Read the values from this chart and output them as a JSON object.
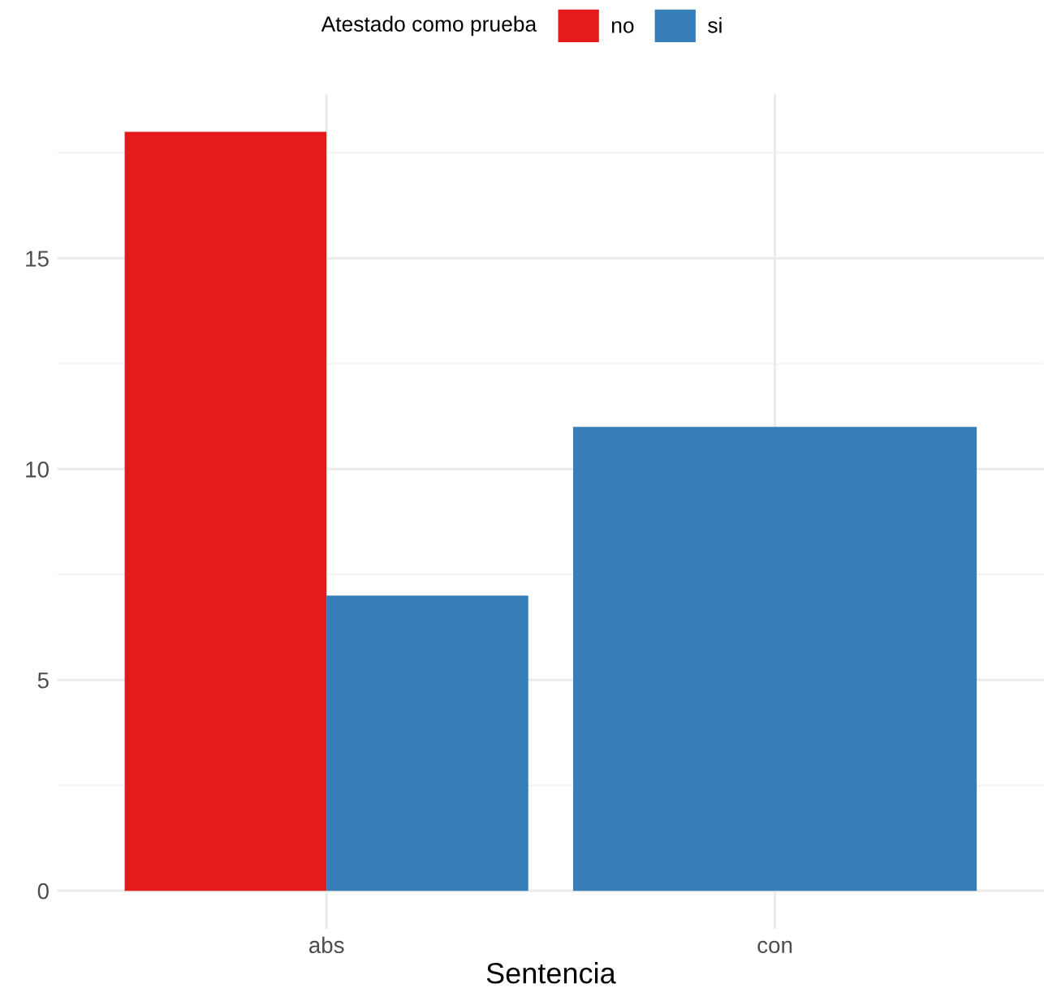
{
  "chart_data": {
    "type": "bar",
    "xlabel": "Sentencia",
    "legend_title": "Atestado como prueba",
    "categories": [
      "abs",
      "con"
    ],
    "series": [
      {
        "name": "no",
        "color": "#e41a1c",
        "values": [
          18,
          null
        ]
      },
      {
        "name": "si",
        "color": "#377eb8",
        "values": [
          7,
          11
        ]
      }
    ],
    "ylim": [
      -0.9,
      18.9
    ],
    "yticks": [
      0,
      5,
      10,
      15
    ],
    "grid": true,
    "legend": "top"
  }
}
